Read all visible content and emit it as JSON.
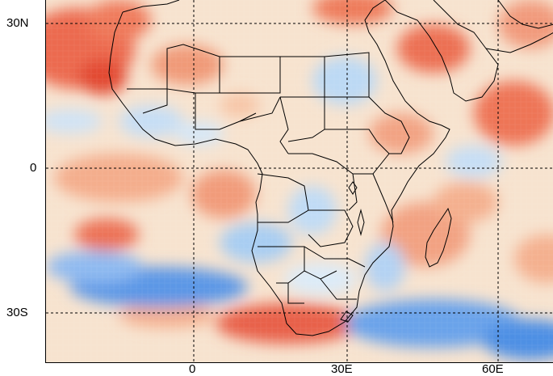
{
  "map": {
    "region": "Africa",
    "color_scale": {
      "positive": "#e8553f",
      "mid": "#ffffff",
      "negative": "#3f86e0"
    },
    "lat_labels": [
      "30N",
      "0",
      "30S"
    ],
    "lon_labels": [
      "0",
      "30E",
      "60E"
    ],
    "gridlines": "dashed"
  }
}
